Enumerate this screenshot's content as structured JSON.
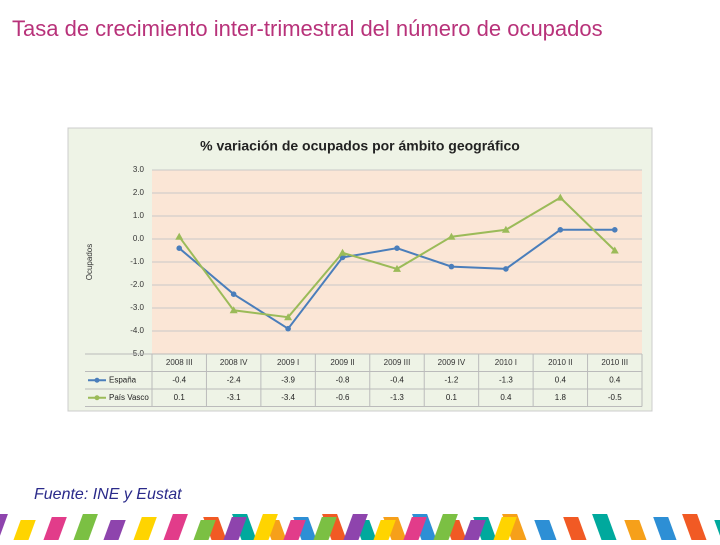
{
  "page_title": "Tasa de crecimiento inter-trimestral del número de ocupados",
  "source": "Fuente: INE y Eustat",
  "chart_data": {
    "type": "line",
    "title": "% variación de ocupados por ámbito geográfico",
    "y_label": "Ocupados",
    "categories": [
      "2008 III",
      "2008 IV",
      "2009 I",
      "2009 II",
      "2009 III",
      "2009 IV",
      "2010 I",
      "2010 II",
      "2010 III"
    ],
    "series": [
      {
        "name": "España",
        "color": "#4a7ebb",
        "marker": "circle",
        "values": [
          -0.4,
          -2.4,
          -3.9,
          -0.8,
          -0.4,
          -1.2,
          -1.3,
          0.4,
          0.4
        ],
        "value_labels": [
          "-0.4",
          "-2.4",
          "-3.9",
          "-0.8",
          "-0.4",
          "-1.2",
          "-1.3",
          "0.4",
          "0.4"
        ]
      },
      {
        "name": "País Vasco",
        "color": "#9bbb59",
        "marker": "triangle",
        "values": [
          0.1,
          -3.1,
          -3.4,
          -0.6,
          -1.3,
          0.1,
          0.4,
          1.8,
          -0.5
        ],
        "value_labels": [
          "0.1",
          "-3.1",
          "-3.4",
          "-0.6",
          "-1.3",
          "0.1",
          "0.4",
          "1.8",
          "-0.5"
        ]
      }
    ],
    "ylim": [
      -5,
      3
    ],
    "yticks": [
      {
        "value": 3,
        "label": "3.0"
      },
      {
        "value": 2,
        "label": "2.0"
      },
      {
        "value": 1,
        "label": "1.0"
      },
      {
        "value": 0,
        "label": "0.0"
      },
      {
        "value": -1,
        "label": "-1.0"
      },
      {
        "value": -2,
        "label": "-2.0"
      },
      {
        "value": -3,
        "label": "-3.0"
      },
      {
        "value": -4,
        "label": "-4.0"
      },
      {
        "value": -5,
        "label": "-5.0"
      }
    ],
    "grid": true
  }
}
